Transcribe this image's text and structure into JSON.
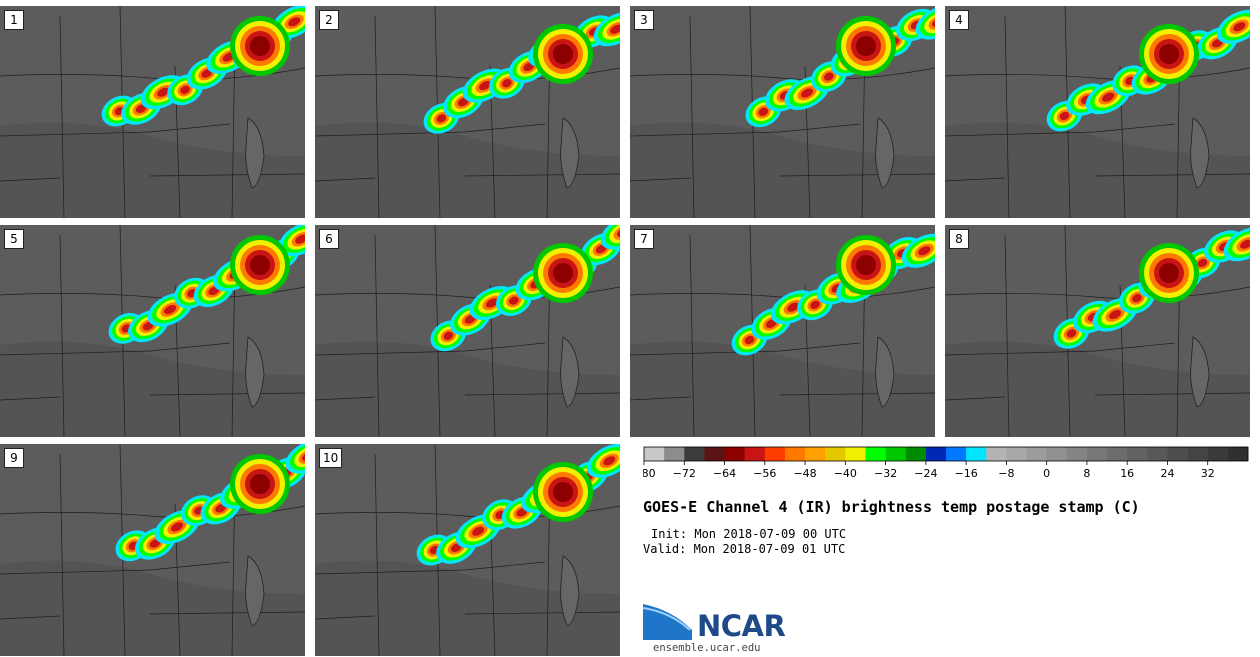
{
  "panels": [
    {
      "label": "1"
    },
    {
      "label": "2"
    },
    {
      "label": "3"
    },
    {
      "label": "4"
    },
    {
      "label": "5"
    },
    {
      "label": "6"
    },
    {
      "label": "7"
    },
    {
      "label": "8"
    },
    {
      "label": "9"
    },
    {
      "label": "10"
    }
  ],
  "colorbar": {
    "colors": [
      "#c8c8c8",
      "#8c8c8c",
      "#3c3c3c",
      "#5a1414",
      "#8c0000",
      "#c81414",
      "#ff3c00",
      "#ff7800",
      "#ffa000",
      "#e6c800",
      "#f0f000",
      "#00ff00",
      "#00c800",
      "#008c00",
      "#0028b4",
      "#0078ff",
      "#00e6ff",
      "#b4b4b4",
      "#a8a8a8",
      "#9c9c9c",
      "#909090",
      "#848484",
      "#787878",
      "#6c6c6c",
      "#626262",
      "#585858",
      "#4e4e4e",
      "#444444",
      "#3a3a3a",
      "#303030"
    ],
    "ticks": [
      "−80",
      "−72",
      "−64",
      "−56",
      "−48",
      "−40",
      "−32",
      "−24",
      "−16",
      "−8",
      "0",
      "8",
      "16",
      "24",
      "32"
    ]
  },
  "title": "GOES-E Channel 4 (IR) brightness temp postage stamp (C)",
  "init_text": "Init: Mon 2018-07-09 00 UTC",
  "valid_text": "Valid: Mon 2018-07-09 01 UTC",
  "logo_text": "NCAR",
  "website": "ensemble.ucar.edu"
}
